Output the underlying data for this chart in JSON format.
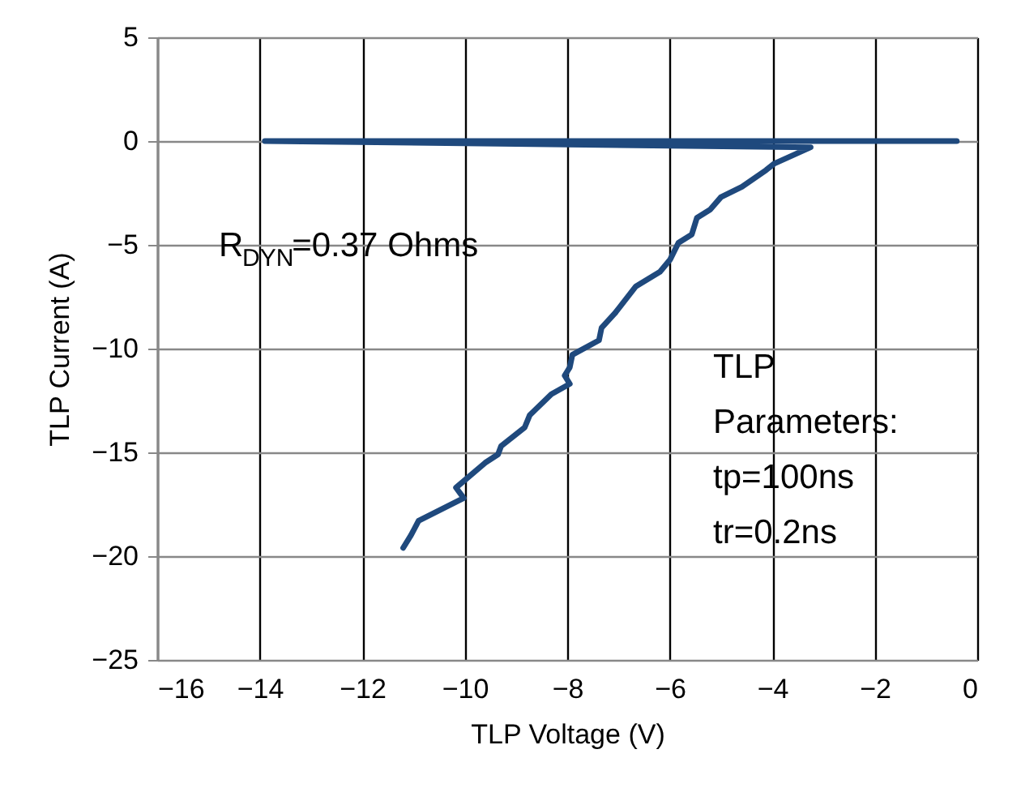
{
  "chart_data": {
    "type": "line",
    "xlabel": "TLP Voltage (V)",
    "ylabel": "TLP Current (A)",
    "x": [
      -0.4,
      -13.9,
      -3.25,
      -3.97,
      -4.12,
      -4.59,
      -5.0,
      -5.21,
      -5.47,
      -5.57,
      -5.83,
      -5.99,
      -6.19,
      -6.66,
      -7.07,
      -7.33,
      -7.38,
      -7.9,
      -7.95,
      -8.05,
      -7.95,
      -8.31,
      -8.73,
      -8.83,
      -9.29,
      -9.35,
      -9.6,
      -10.17,
      -10.02,
      -10.9,
      -11.05,
      -11.2
    ],
    "series": [
      {
        "color": "#1f497d",
        "values": [
          0.0,
          0.0,
          -0.3,
          -1.1,
          -1.4,
          -2.2,
          -2.7,
          -3.3,
          -3.7,
          -4.5,
          -4.9,
          -5.7,
          -6.3,
          -7.0,
          -8.3,
          -9.0,
          -9.6,
          -10.3,
          -10.9,
          -11.3,
          -11.7,
          -12.2,
          -13.2,
          -13.8,
          -14.7,
          -15.1,
          -15.5,
          -16.7,
          -17.2,
          -18.3,
          -19.0,
          -19.6
        ]
      }
    ],
    "xlim": [
      -16,
      0
    ],
    "xticks": [
      -16,
      -14,
      -12,
      -10,
      -8,
      -6,
      -4,
      -2,
      0
    ],
    "ylim": [
      -25,
      5
    ],
    "yticks": [
      5,
      0,
      -5,
      -10,
      -15,
      -20,
      -25
    ],
    "grid": true,
    "marker": "none",
    "line_style": "solid",
    "annotations": [
      "R$_{DYN}$=0.37  Ohms",
      "TLP\nParameters:\ntp=100ns\ntr=0.2ns"
    ]
  }
}
